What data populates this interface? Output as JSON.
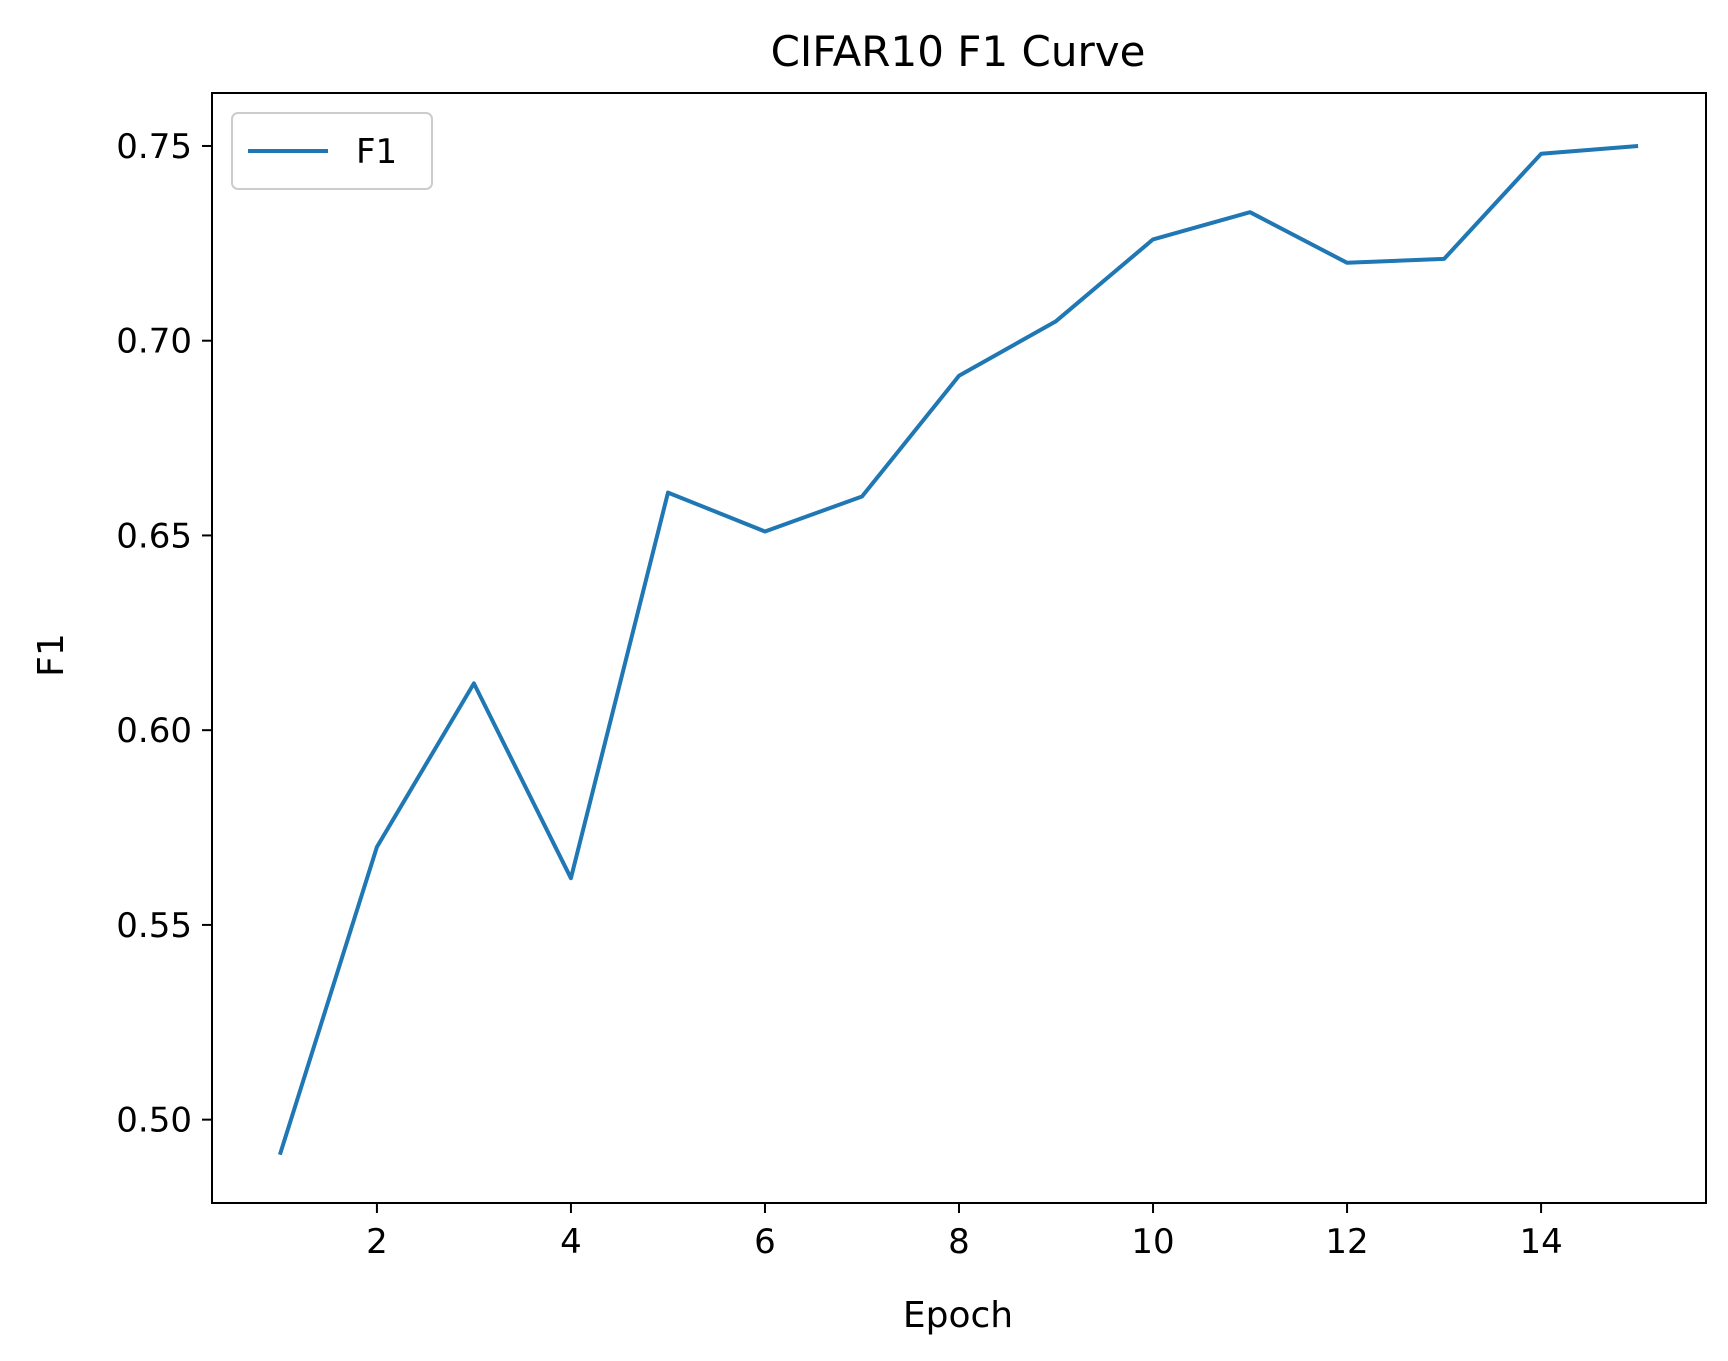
{
  "chart_data": {
    "type": "line",
    "title": "CIFAR10 F1 Curve",
    "xlabel": "Epoch",
    "ylabel": "F1",
    "xlim": [
      0.3,
      15.7
    ],
    "ylim": [
      0.4786,
      0.7636
    ],
    "xticks": [
      2,
      4,
      6,
      8,
      10,
      12,
      14
    ],
    "xtick_labels": [
      "2",
      "4",
      "6",
      "8",
      "10",
      "12",
      "14"
    ],
    "yticks": [
      0.5,
      0.55,
      0.6,
      0.65,
      0.7,
      0.75
    ],
    "ytick_labels": [
      "0.50",
      "0.55",
      "0.60",
      "0.65",
      "0.70",
      "0.75"
    ],
    "grid": false,
    "legend": {
      "position": "top-left"
    },
    "series": [
      {
        "name": "F1",
        "color": "#1f77b4",
        "x": [
          1,
          2,
          3,
          4,
          5,
          6,
          7,
          8,
          9,
          10,
          11,
          12,
          13,
          14,
          15
        ],
        "y": [
          0.491,
          0.57,
          0.612,
          0.562,
          0.661,
          0.651,
          0.66,
          0.691,
          0.705,
          0.726,
          0.733,
          0.72,
          0.721,
          0.748,
          0.75
        ]
      }
    ]
  }
}
